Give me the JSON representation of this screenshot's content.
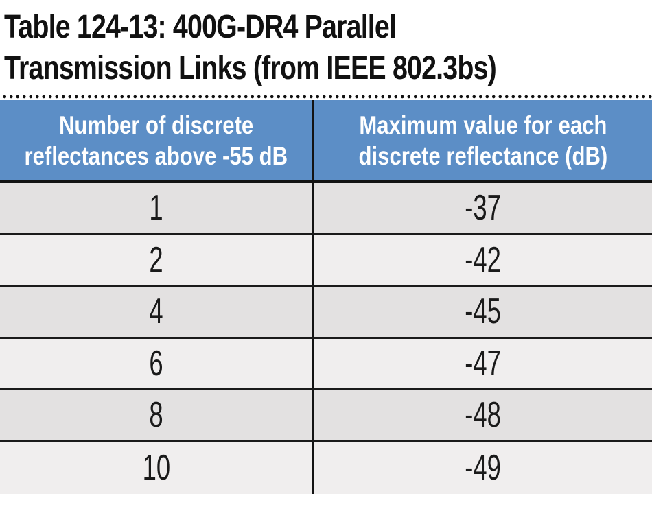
{
  "page": {
    "title_lines": [
      "Table 124-13: 400G-DR4 Parallel",
      "Transmission Links (from IEEE 802.3bs)"
    ]
  },
  "table": {
    "header": {
      "col1_lines": [
        "Number of discrete",
        "reflectances above -55 dB"
      ],
      "col2_lines": [
        "Maximum value for each",
        "discrete reflectance (dB)"
      ],
      "col1_label": "Number of discrete reflectances above -55 dB",
      "col2_label": "Maximum value for each discrete reflectance (dB)"
    },
    "rows": [
      [
        "1",
        "-37"
      ],
      [
        "2",
        "-42"
      ],
      [
        "4",
        "-45"
      ],
      [
        "6",
        "-47"
      ],
      [
        "8",
        "-48"
      ],
      [
        "10",
        "-49"
      ]
    ]
  },
  "colors": {
    "header_bg": "#5c8ec6",
    "row_dark": "#e3e1e1",
    "row_light": "#f0eeee",
    "border": "#131313",
    "text": "#1a1a1a"
  },
  "chart_data": {
    "type": "table",
    "title": "Table 124-13: 400G-DR4 Parallel Transmission Links (from IEEE 802.3bs)",
    "columns": [
      "Number of discrete reflectances above -55 dB",
      "Maximum value for each discrete reflectance (dB)"
    ],
    "rows": [
      [
        1,
        -37
      ],
      [
        2,
        -42
      ],
      [
        4,
        -45
      ],
      [
        6,
        -47
      ],
      [
        8,
        -48
      ],
      [
        10,
        -49
      ]
    ]
  }
}
